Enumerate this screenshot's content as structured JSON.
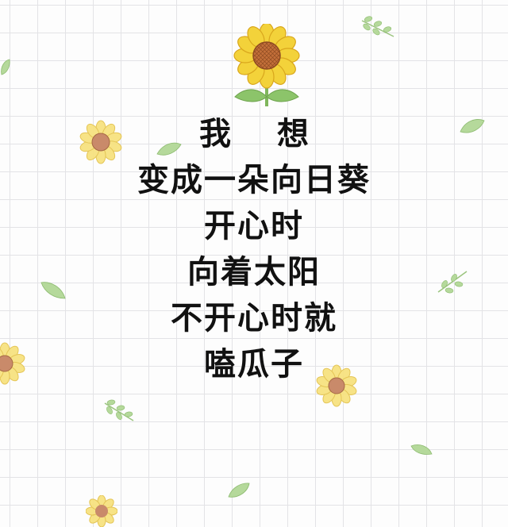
{
  "poem": {
    "lines": [
      "我 想",
      "变成一朵向日葵",
      "开心时",
      "向着太阳",
      "不开心时就",
      "嗑瓜子"
    ]
  },
  "decorations": {
    "main_icon": "sunflower-with-leaves-icon",
    "small_sunflower_icon": "small-sunflower-icon",
    "leaf_icon": "leaf-icon",
    "sprig_icon": "leaf-sprig-icon"
  },
  "colors": {
    "text": "#111111",
    "grid": "#e3e3e6",
    "background": "#fdfdfd",
    "petal": "#f3d23a",
    "petal_edge": "#d9a61c",
    "seed_center": "#c4703a",
    "leaf": "#9fce82"
  }
}
